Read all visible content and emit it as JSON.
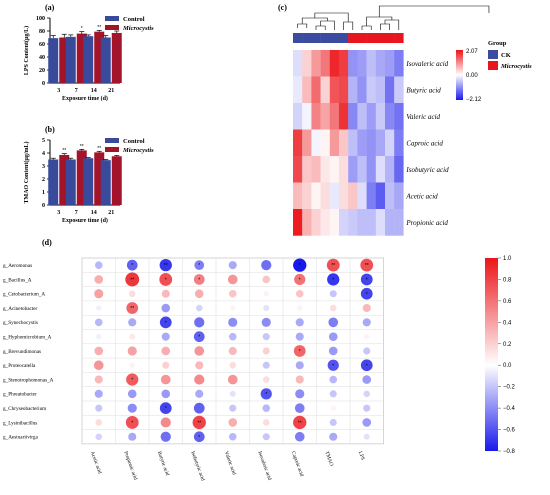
{
  "chart_data": [
    {
      "id": "a",
      "panel": "(a)",
      "type": "bar",
      "xlabel": "Exposure time (d)",
      "ylabel": "LPS Content(µg/L)",
      "categories": [
        "3",
        "7",
        "14",
        "21"
      ],
      "ylim": [
        0,
        100
      ],
      "yticks": [
        "0",
        "20",
        "40",
        "60",
        "80",
        "100"
      ],
      "series": [
        {
          "name": "Control",
          "color": "#3a4a9a",
          "values": [
            69,
            71,
            72,
            70
          ],
          "errors": [
            4,
            3,
            2,
            3
          ]
        },
        {
          "name": "Microcystis",
          "color": "#a3132a",
          "values": [
            70,
            76,
            79,
            77
          ],
          "errors": [
            5,
            3,
            2,
            3
          ]
        }
      ],
      "significance": [
        "",
        "*",
        "**",
        "**"
      ]
    },
    {
      "id": "b",
      "panel": "(b)",
      "type": "bar",
      "xlabel": "Exposure time (d)",
      "ylabel": "TMAO Content(µg/mL)",
      "categories": [
        "3",
        "7",
        "14",
        "21"
      ],
      "ylim": [
        0,
        5
      ],
      "yticks": [
        "0",
        "1",
        "2",
        "3",
        "4",
        "5"
      ],
      "series": [
        {
          "name": "Control",
          "color": "#3a4a9a",
          "values": [
            3.5,
            3.5,
            3.6,
            3.45
          ],
          "errors": [
            0.1,
            0.1,
            0.05,
            0.05
          ]
        },
        {
          "name": "Microcystis",
          "color": "#a3132a",
          "values": [
            3.85,
            4.2,
            4.05,
            3.75
          ],
          "errors": [
            0.1,
            0.08,
            0.08,
            0.07
          ]
        }
      ],
      "significance": [
        "**",
        "**",
        "**",
        "**"
      ]
    },
    {
      "id": "c",
      "panel": "(c)",
      "type": "heatmap",
      "rows": [
        "Isovaleric acid",
        "Butyric acid",
        "Valeric acid",
        "Caproic acid",
        "Isobutyric acid",
        "Acetic acid",
        "Propionic acid"
      ],
      "groups": [
        "CK",
        "CK",
        "CK",
        "CK",
        "CK",
        "CK",
        "Microcystis",
        "Microcystis",
        "Microcystis",
        "Microcystis",
        "Microcystis",
        "Microcystis"
      ],
      "group_legend": {
        "title": "Group",
        "items": [
          {
            "name": "CK",
            "color": "#3b4ba0"
          },
          {
            "name": "Microcystis",
            "color": "#e8141e"
          }
        ]
      },
      "colorbar": {
        "min": -2.12,
        "max": 2.07,
        "ticks": [
          "2.07",
          "0.00",
          "−2.12"
        ]
      },
      "values": [
        [
          -0.3,
          0.4,
          0.9,
          1.2,
          1.9,
          1.7,
          -1.0,
          -0.9,
          -0.6,
          -0.8,
          -0.9,
          -1.2
        ],
        [
          -0.2,
          0.6,
          1.3,
          0.4,
          1.5,
          1.6,
          -0.7,
          -1.0,
          -0.5,
          -0.6,
          -1.3,
          -0.5
        ],
        [
          -0.4,
          -0.1,
          1.1,
          0.8,
          1.2,
          1.8,
          -1.1,
          -0.6,
          -0.9,
          -0.5,
          -1.1,
          -1.3
        ],
        [
          1.7,
          0.9,
          -0.1,
          0.1,
          0.9,
          0.5,
          -0.6,
          -0.9,
          -1.0,
          -0.8,
          -0.4,
          -1.2
        ],
        [
          1.6,
          0.5,
          0.6,
          0.2,
          0.1,
          0.3,
          -0.9,
          -0.6,
          -1.0,
          -0.3,
          -0.7,
          -1.4
        ],
        [
          0.6,
          0.4,
          0.1,
          0.3,
          -0.2,
          0.3,
          0.5,
          -0.3,
          -1.2,
          -1.5,
          -0.6,
          -0.8
        ],
        [
          2.0,
          0.7,
          0.4,
          0.2,
          0.1,
          -0.4,
          -0.5,
          -0.6,
          -0.6,
          -0.3,
          -0.7,
          -0.7
        ]
      ]
    },
    {
      "id": "d",
      "panel": "(d)",
      "type": "heatmap",
      "rows": [
        "g_Aeromonas",
        "g_Bacillus_A",
        "g_Cetobacterium_A",
        "g_Acinetobacter",
        "g_Synechocystis",
        "g_Hyphomicrobium_A",
        "g_Brevundimonas",
        "g_Proteocatella",
        "g_Stenotrophomonas_A",
        "g_Phreatobacter",
        "g_Chryseobacterium",
        "g_Lysinibacillus",
        "g_Aestuariivirga"
      ],
      "columns": [
        "Acetic acid",
        "Propionic acid",
        "Butyric acid",
        "Isobutyric acid",
        "Valeric acid",
        "Isovaleric acid",
        "Caproic acid",
        "TMAO",
        "LPS"
      ],
      "colorbar": {
        "min": -0.8,
        "max": 1.0,
        "ticks": [
          "1.0",
          "0.8",
          "0.6",
          "0.4",
          "0.2",
          "0.0",
          "−0.2",
          "−0.4",
          "−0.6",
          "−0.8"
        ]
      },
      "values": [
        [
          -0.25,
          -0.55,
          -0.7,
          -0.45,
          -0.3,
          -0.5,
          -0.8,
          0.75,
          0.75
        ],
        [
          0.35,
          0.85,
          0.75,
          0.55,
          0.45,
          0.25,
          0.6,
          -0.7,
          -0.65
        ],
        [
          0.4,
          0.15,
          0.3,
          0.35,
          0.25,
          0.05,
          0.25,
          -0.2,
          -0.65
        ],
        [
          -0.05,
          0.65,
          -0.35,
          -0.15,
          0.05,
          -0.1,
          0.05,
          0.15,
          0.3
        ],
        [
          -0.25,
          -0.3,
          -0.65,
          -0.5,
          -0.4,
          -0.4,
          -0.3,
          -0.45,
          -0.3
        ],
        [
          -0.05,
          0.1,
          -0.3,
          -0.55,
          -0.25,
          -0.2,
          -0.3,
          -0.35,
          0.05
        ],
        [
          0.35,
          0.4,
          0.35,
          0.45,
          0.3,
          0.2,
          0.65,
          -0.35,
          -0.2
        ],
        [
          0.45,
          0.05,
          0.2,
          0.3,
          0.15,
          -0.2,
          -0.3,
          -0.6,
          -0.65
        ],
        [
          0.3,
          0.7,
          0.45,
          0.5,
          0.45,
          0.15,
          0.3,
          -0.25,
          -0.35
        ],
        [
          -0.3,
          -0.35,
          -0.35,
          -0.3,
          -0.1,
          -0.6,
          -0.4,
          -0.2,
          -0.15
        ],
        [
          -0.2,
          -0.4,
          -0.65,
          -0.55,
          -0.2,
          -0.25,
          -0.45,
          0.05,
          -0.2
        ],
        [
          0.15,
          0.75,
          0.5,
          0.8,
          0.35,
          0.15,
          0.8,
          -0.2,
          -0.35
        ],
        [
          -0.15,
          -0.3,
          -0.5,
          -0.55,
          -0.25,
          -0.2,
          -0.45,
          -0.3,
          -0.1
        ]
      ],
      "significance": [
        [
          "",
          "*",
          "**",
          "*",
          "",
          "",
          "*",
          "**",
          "**"
        ],
        [
          "",
          "**",
          "*",
          "*",
          "",
          "",
          "*",
          "*",
          "*"
        ],
        [
          "",
          "",
          "",
          "",
          "",
          "",
          "",
          "",
          "*"
        ],
        [
          "",
          "**",
          "",
          "",
          "",
          "",
          "",
          "",
          ""
        ],
        [
          "",
          "",
          "*",
          "",
          "",
          "",
          "",
          "",
          ""
        ],
        [
          "",
          "",
          "",
          "*",
          "",
          "",
          "",
          "",
          ""
        ],
        [
          "",
          "",
          "",
          "",
          "",
          "",
          "*",
          "",
          ""
        ],
        [
          "",
          "",
          "",
          "",
          "",
          "",
          "",
          "*",
          "*"
        ],
        [
          "",
          "*",
          "",
          "",
          "",
          "",
          "",
          "",
          ""
        ],
        [
          "",
          "",
          "",
          "",
          "",
          "*",
          "",
          "",
          ""
        ],
        [
          "",
          "",
          "*",
          "",
          "",
          "",
          "",
          "",
          ""
        ],
        [
          "",
          "*",
          "",
          "**",
          "",
          "",
          "**",
          "",
          ""
        ],
        [
          "",
          "",
          "",
          "*",
          "",
          "",
          "",
          "",
          ""
        ]
      ]
    }
  ]
}
